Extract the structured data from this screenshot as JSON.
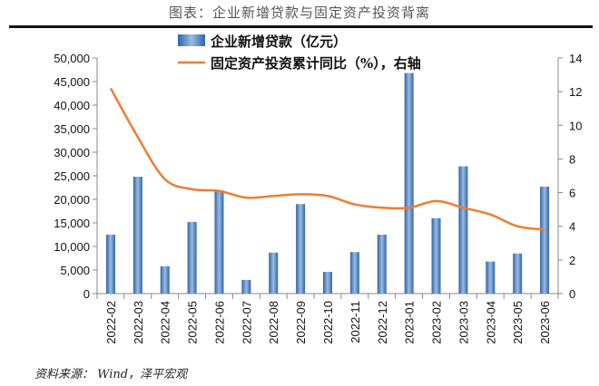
{
  "header": {
    "title": "图表：企业新增贷款与固定资产投资背离"
  },
  "source": "资料来源： Wind，泽平宏观",
  "chart_data": {
    "type": "bar+line",
    "title": "图表：企业新增贷款与固定资产投资背离",
    "categories": [
      "2022-02",
      "2022-03",
      "2022-04",
      "2022-05",
      "2022-06",
      "2022-07",
      "2022-08",
      "2022-09",
      "2022-10",
      "2022-11",
      "2022-12",
      "2023-01",
      "2023-02",
      "2023-03",
      "2023-04",
      "2023-05",
      "2023-06"
    ],
    "series": [
      {
        "name": "企业新增贷款（亿元）",
        "type": "bar",
        "axis": "left",
        "color": "#4f81bd",
        "values": [
          12500,
          24800,
          5800,
          15200,
          21900,
          2900,
          8700,
          19000,
          4600,
          8800,
          12500,
          46800,
          16000,
          27000,
          6800,
          8500,
          22700
        ]
      },
      {
        "name": "固定资产投资累计同比（%），右轴",
        "type": "line",
        "axis": "right",
        "color": "#ed7d31",
        "values": [
          12.2,
          9.3,
          6.8,
          6.2,
          6.1,
          5.7,
          5.8,
          5.9,
          5.8,
          5.3,
          5.1,
          5.1,
          5.5,
          5.1,
          4.7,
          4.0,
          3.8
        ]
      }
    ],
    "yleft": {
      "lim": [
        0,
        50000
      ],
      "ticks": [
        "0",
        "5,000",
        "10,000",
        "15,000",
        "20,000",
        "25,000",
        "30,000",
        "35,000",
        "40,000",
        "45,000",
        "50,000"
      ]
    },
    "yright": {
      "lim": [
        0,
        14
      ],
      "ticks": [
        "0",
        "2",
        "4",
        "6",
        "8",
        "10",
        "12",
        "14"
      ]
    },
    "legend": "top-center",
    "grid": false
  }
}
